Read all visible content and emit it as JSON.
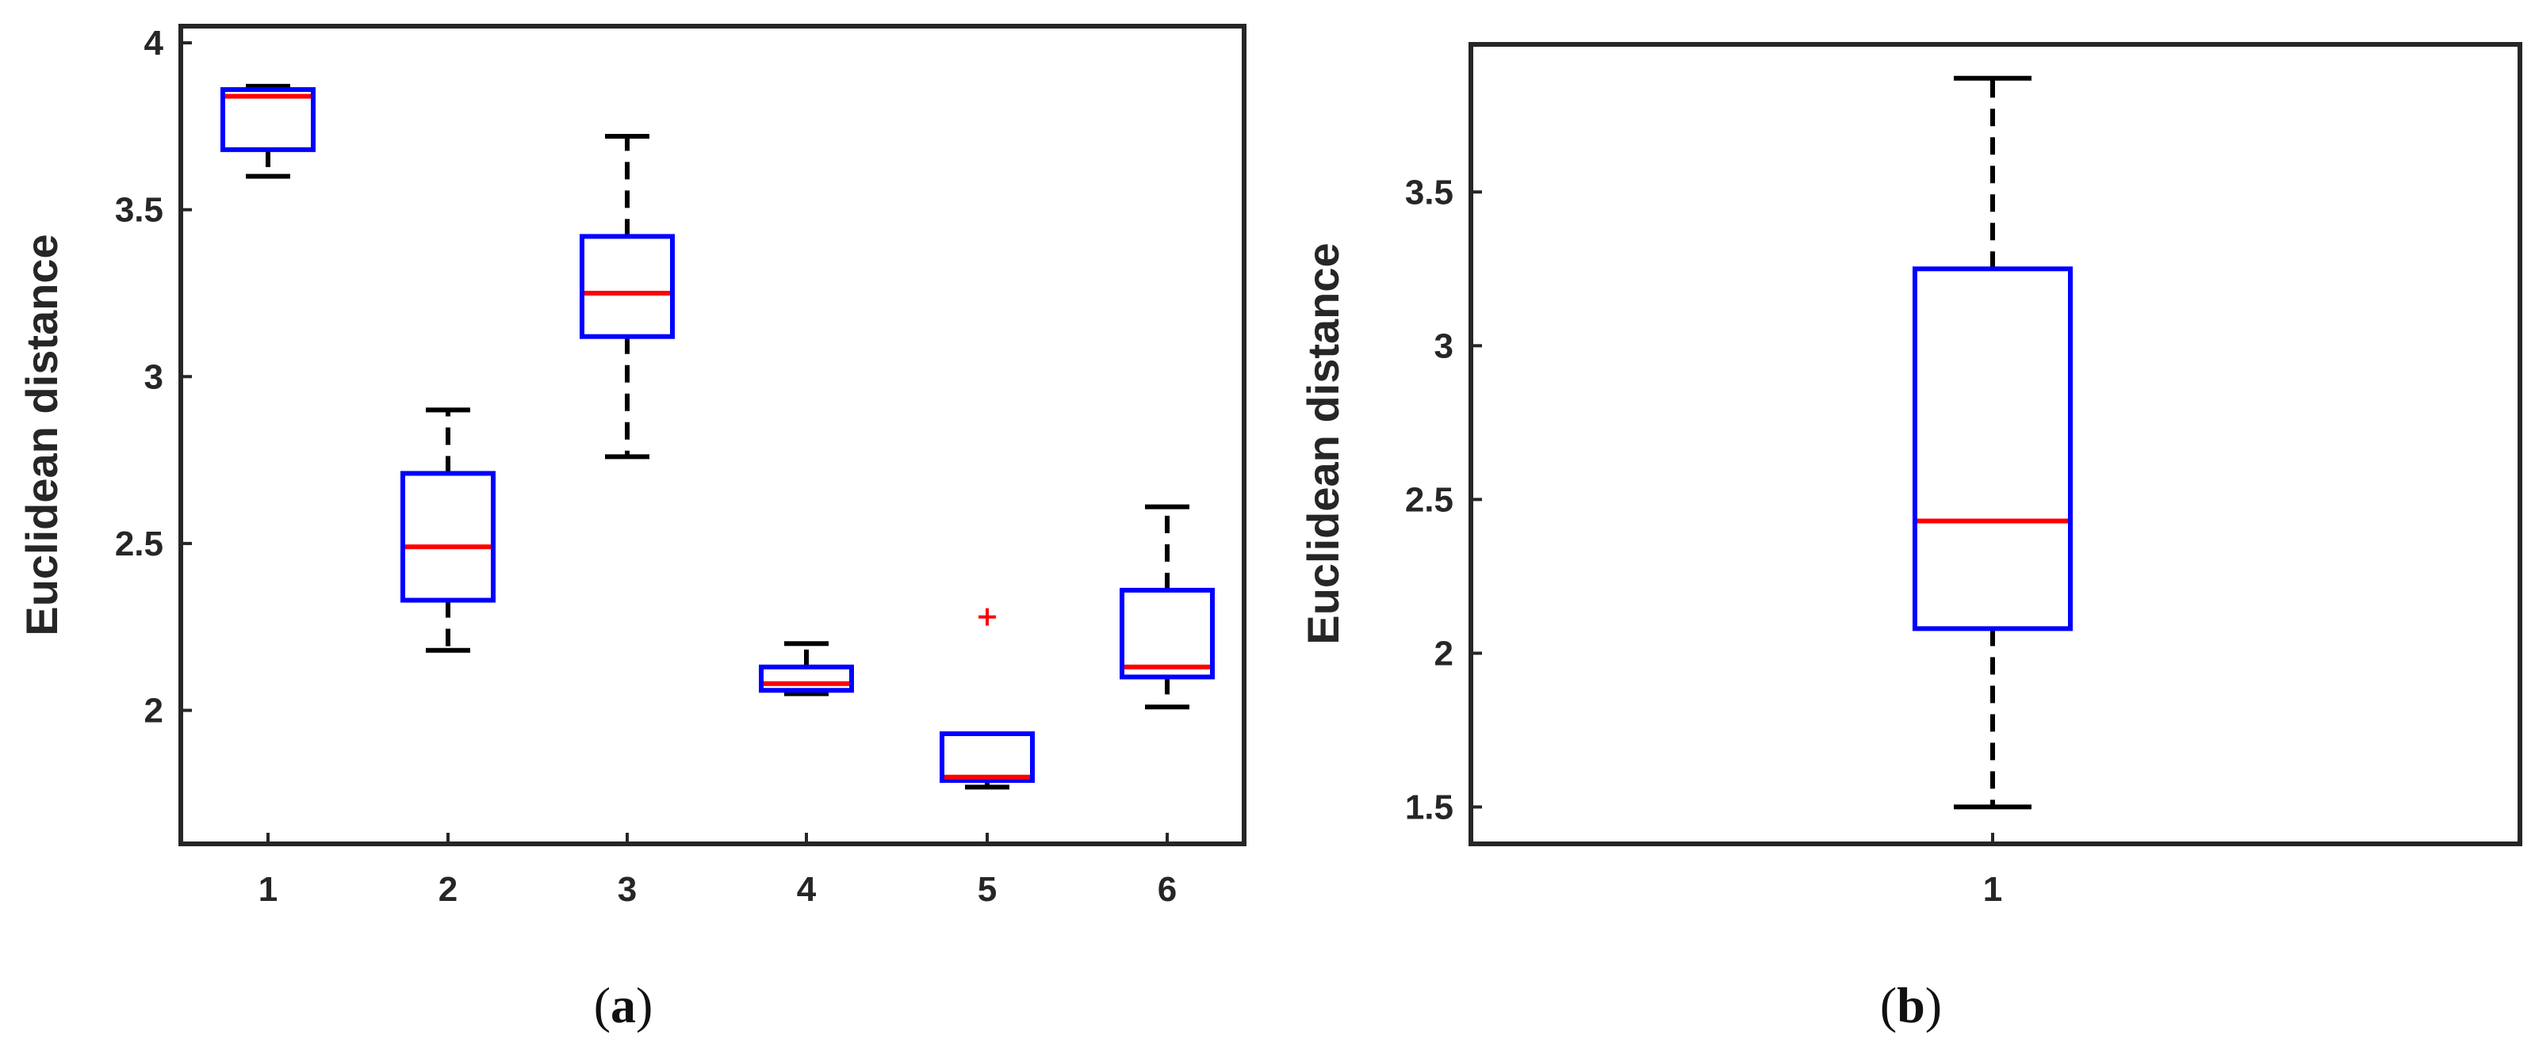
{
  "colors": {
    "box": "#0000ff",
    "median": "#ff0000",
    "whisker": "#000000",
    "outlier": "#ff0000",
    "axis": "#262626"
  },
  "chart_data": [
    {
      "type": "boxplot",
      "panel_label": {
        "open": "(",
        "letter": "a",
        "close": ")"
      },
      "ylabel": "Euclidean distance",
      "xlabel": "",
      "categories": [
        "1",
        "2",
        "3",
        "4",
        "5",
        "6"
      ],
      "ylim": [
        1.6,
        4.05
      ],
      "yticks": [
        2,
        2.5,
        3,
        3.5,
        4
      ],
      "ytick_labels": [
        "2",
        "2.5",
        "3",
        "3.5",
        "4"
      ],
      "grid": false,
      "boxes": [
        {
          "whisker_low": 3.6,
          "q1": 3.68,
          "median": 3.84,
          "q3": 3.86,
          "whisker_high": 3.87,
          "outliers": []
        },
        {
          "whisker_low": 2.18,
          "q1": 2.33,
          "median": 2.49,
          "q3": 2.71,
          "whisker_high": 2.9,
          "outliers": []
        },
        {
          "whisker_low": 2.76,
          "q1": 3.12,
          "median": 3.25,
          "q3": 3.42,
          "whisker_high": 3.72,
          "outliers": []
        },
        {
          "whisker_low": 2.05,
          "q1": 2.06,
          "median": 2.08,
          "q3": 2.13,
          "whisker_high": 2.2,
          "outliers": []
        },
        {
          "whisker_low": 1.77,
          "q1": 1.79,
          "median": 1.8,
          "q3": 1.93,
          "whisker_high": 1.93,
          "outliers": [
            2.28
          ]
        },
        {
          "whisker_low": 2.01,
          "q1": 2.1,
          "median": 2.13,
          "q3": 2.36,
          "whisker_high": 2.61,
          "outliers": []
        }
      ]
    },
    {
      "type": "boxplot",
      "panel_label": {
        "open": "(",
        "letter": "b",
        "close": ")"
      },
      "ylabel": "Euclidean distance",
      "xlabel": "",
      "categories": [
        "1"
      ],
      "ylim": [
        1.38,
        3.98
      ],
      "yticks": [
        1.5,
        2,
        2.5,
        3,
        3.5
      ],
      "ytick_labels": [
        "1.5",
        "2",
        "2.5",
        "3",
        "3.5"
      ],
      "grid": false,
      "boxes": [
        {
          "whisker_low": 1.5,
          "q1": 2.08,
          "median": 2.43,
          "q3": 3.25,
          "whisker_high": 3.87,
          "outliers": []
        }
      ]
    }
  ]
}
